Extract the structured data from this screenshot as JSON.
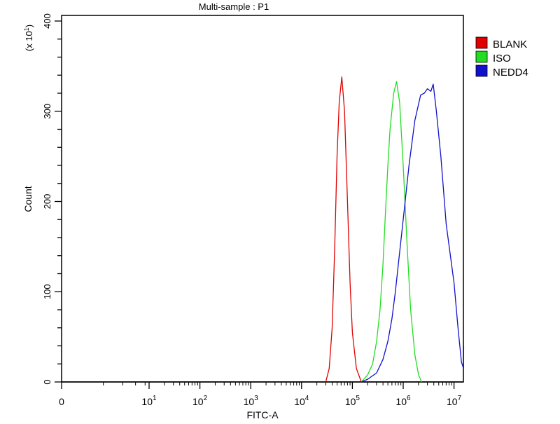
{
  "chart_data": {
    "type": "line",
    "title": "Multi-sample : P1",
    "xlabel": "FITC-A",
    "ylabel": "Count",
    "y_multiplier_label": "(x 10^1)",
    "x_scale": "log (biexponential, 0 at origin)",
    "xlim": [
      0,
      15500000
    ],
    "ylim": [
      0,
      400
    ],
    "x_tick_labels": [
      {
        "value": 0,
        "base": "0",
        "exp": ""
      },
      {
        "value": 10,
        "base": "10",
        "exp": "1"
      },
      {
        "value": 100,
        "base": "10",
        "exp": "2"
      },
      {
        "value": 1000,
        "base": "10",
        "exp": "3"
      },
      {
        "value": 10000,
        "base": "10",
        "exp": "4"
      },
      {
        "value": 100000,
        "base": "10",
        "exp": "5"
      },
      {
        "value": 1000000,
        "base": "10",
        "exp": "6"
      },
      {
        "value": 10000000,
        "base": "10",
        "exp": "7"
      }
    ],
    "y_ticks": [
      0,
      100,
      200,
      300,
      400
    ],
    "grid": false,
    "legend_position": "right",
    "series": [
      {
        "name": "BLANK",
        "color": "#e00000",
        "points": [
          [
            30000,
            0
          ],
          [
            35000,
            15
          ],
          [
            40000,
            60
          ],
          [
            45000,
            150
          ],
          [
            50000,
            250
          ],
          [
            55000,
            310
          ],
          [
            62000,
            338
          ],
          [
            70000,
            300
          ],
          [
            80000,
            200
          ],
          [
            90000,
            110
          ],
          [
            100000,
            55
          ],
          [
            120000,
            15
          ],
          [
            150000,
            0
          ]
        ]
      },
      {
        "name": "ISO",
        "color": "#22dd22",
        "points": [
          [
            150000,
            0
          ],
          [
            200000,
            8
          ],
          [
            250000,
            20
          ],
          [
            300000,
            45
          ],
          [
            350000,
            80
          ],
          [
            400000,
            130
          ],
          [
            450000,
            190
          ],
          [
            500000,
            240
          ],
          [
            550000,
            280
          ],
          [
            650000,
            320
          ],
          [
            740000,
            333
          ],
          [
            850000,
            310
          ],
          [
            1000000,
            240
          ],
          [
            1200000,
            150
          ],
          [
            1400000,
            80
          ],
          [
            1700000,
            30
          ],
          [
            2000000,
            8
          ],
          [
            2300000,
            0
          ]
        ]
      },
      {
        "name": "NEDD4",
        "color": "#1010cc",
        "points": [
          [
            150000,
            0
          ],
          [
            200000,
            3
          ],
          [
            300000,
            10
          ],
          [
            400000,
            25
          ],
          [
            500000,
            45
          ],
          [
            600000,
            70
          ],
          [
            700000,
            100
          ],
          [
            800000,
            130
          ],
          [
            1000000,
            180
          ],
          [
            1300000,
            240
          ],
          [
            1700000,
            290
          ],
          [
            2200000,
            318
          ],
          [
            2600000,
            320
          ],
          [
            3000000,
            325
          ],
          [
            3500000,
            322
          ],
          [
            3900000,
            330
          ],
          [
            4500000,
            300
          ],
          [
            5500000,
            250
          ],
          [
            7000000,
            175
          ],
          [
            10000000,
            110
          ],
          [
            12000000,
            60
          ],
          [
            14000000,
            22
          ],
          [
            15400000,
            15
          ],
          [
            15500000,
            40
          ]
        ]
      }
    ]
  }
}
